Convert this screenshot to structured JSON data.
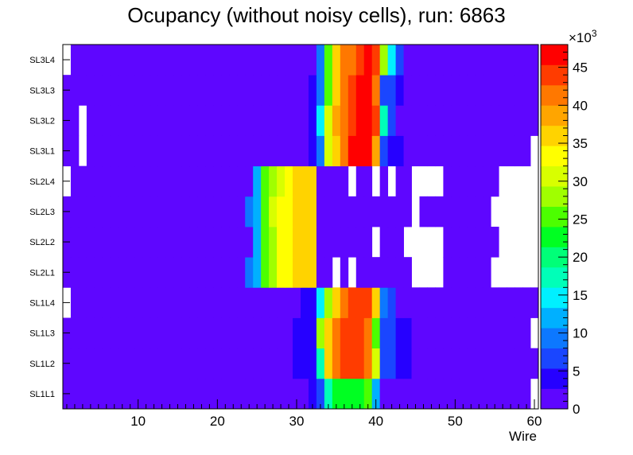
{
  "chart_data": {
    "type": "heatmap",
    "title": "Ocupancy (without noisy cells), run: 6863",
    "xlabel": "Wire",
    "ylabel": "",
    "xlim": [
      0.5,
      60.5
    ],
    "x_ticks": [
      "10",
      "20",
      "30",
      "40",
      "50",
      "60"
    ],
    "x_tick_values": [
      10,
      20,
      30,
      40,
      50,
      60
    ],
    "y_categories": [
      "SL1L1",
      "SL1L2",
      "SL1L3",
      "SL1L4",
      "SL2L1",
      "SL2L2",
      "SL2L3",
      "SL2L4",
      "SL3L1",
      "SL3L2",
      "SL3L3",
      "SL3L4"
    ],
    "colorbar": {
      "exponent_label": "×10",
      "exponent_power": "3",
      "zlim": [
        0,
        48000
      ],
      "ticks": [
        "0",
        "5",
        "10",
        "15",
        "20",
        "25",
        "30",
        "35",
        "40",
        "45"
      ],
      "tick_values": [
        0,
        5000,
        10000,
        15000,
        20000,
        25000,
        30000,
        35000,
        40000,
        45000
      ],
      "palette": [
        "#5E06FF",
        "#2600FF",
        "#1A46FF",
        "#0D78FF",
        "#00B0FF",
        "#00F0FF",
        "#00FFB8",
        "#00FF78",
        "#00FF22",
        "#4CFF00",
        "#A0FF00",
        "#D8FF00",
        "#FFFF00",
        "#FFD300",
        "#FFA500",
        "#FF7800",
        "#FF3C00",
        "#FF0000"
      ]
    },
    "rows": {
      "SL3L4": {
        "empty": [
          1
        ],
        "profile": [
          [
            33,
            9000
          ],
          [
            34,
            24000
          ],
          [
            35,
            35000
          ],
          [
            36,
            40000
          ],
          [
            37,
            42000
          ],
          [
            38,
            45000
          ],
          [
            39,
            48000
          ],
          [
            40,
            43000
          ],
          [
            41,
            28000
          ],
          [
            42,
            14000
          ],
          [
            43,
            7000
          ]
        ]
      },
      "SL3L3": {
        "empty": [],
        "profile": [
          [
            32,
            3000
          ],
          [
            33,
            10000
          ],
          [
            34,
            26000
          ],
          [
            35,
            37000
          ],
          [
            36,
            42000
          ],
          [
            37,
            45000
          ],
          [
            38,
            47000
          ],
          [
            39,
            46000
          ],
          [
            40,
            41000
          ],
          [
            41,
            7000
          ],
          [
            42,
            6000
          ],
          [
            43,
            5000
          ]
        ]
      },
      "SL3L2": {
        "empty": [
          3
        ],
        "profile": [
          [
            32,
            4000
          ],
          [
            33,
            14000
          ],
          [
            34,
            30000
          ],
          [
            35,
            38000
          ],
          [
            36,
            42000
          ],
          [
            37,
            45000
          ],
          [
            38,
            46000
          ],
          [
            39,
            47000
          ],
          [
            40,
            44000
          ],
          [
            41,
            16000
          ],
          [
            42,
            6000
          ]
        ]
      },
      "SL3L1": {
        "empty": [
          3,
          60
        ],
        "profile": [
          [
            32,
            3000
          ],
          [
            33,
            10000
          ],
          [
            34,
            30000
          ],
          [
            35,
            36000
          ],
          [
            36,
            42000
          ],
          [
            37,
            46000
          ],
          [
            38,
            47000
          ],
          [
            39,
            46000
          ],
          [
            40,
            38000
          ],
          [
            41,
            6000
          ],
          [
            42,
            5000
          ],
          [
            43,
            4000
          ]
        ]
      },
      "SL2L4": {
        "empty": [
          1,
          37,
          40,
          42,
          45,
          46,
          47,
          48,
          56,
          57,
          58,
          59,
          60
        ],
        "profile": [
          [
            25,
            11000
          ],
          [
            26,
            24000
          ],
          [
            27,
            28000
          ],
          [
            28,
            31000
          ],
          [
            29,
            34000
          ],
          [
            30,
            35000
          ],
          [
            31,
            35000
          ],
          [
            32,
            35000
          ]
        ]
      },
      "SL2L3": {
        "empty": [
          45,
          55,
          56,
          57,
          58,
          59,
          60
        ],
        "profile": [
          [
            24,
            8000
          ],
          [
            25,
            12000
          ],
          [
            26,
            26000
          ],
          [
            27,
            30000
          ],
          [
            28,
            32000
          ],
          [
            29,
            34000
          ],
          [
            30,
            35000
          ],
          [
            31,
            35000
          ],
          [
            32,
            35000
          ]
        ]
      },
      "SL2L2": {
        "empty": [
          40,
          44,
          45,
          46,
          47,
          48,
          56,
          57,
          58,
          59,
          60
        ],
        "profile": [
          [
            25,
            11000
          ],
          [
            26,
            24000
          ],
          [
            27,
            29000
          ],
          [
            28,
            32000
          ],
          [
            29,
            34000
          ],
          [
            30,
            35000
          ],
          [
            31,
            35000
          ],
          [
            32,
            35000
          ]
        ]
      },
      "SL2L1": {
        "empty": [
          35,
          37,
          45,
          46,
          47,
          48,
          55,
          56,
          57,
          58,
          59,
          60
        ],
        "profile": [
          [
            24,
            8000
          ],
          [
            25,
            11000
          ],
          [
            26,
            25000
          ],
          [
            27,
            29000
          ],
          [
            28,
            32000
          ],
          [
            29,
            34000
          ],
          [
            30,
            35000
          ],
          [
            31,
            35000
          ],
          [
            32,
            35000
          ]
        ]
      },
      "SL1L4": {
        "empty": [
          1
        ],
        "profile": [
          [
            31,
            3000
          ],
          [
            32,
            4000
          ],
          [
            33,
            14000
          ],
          [
            34,
            28000
          ],
          [
            35,
            37000
          ],
          [
            36,
            42000
          ],
          [
            37,
            43000
          ],
          [
            38,
            45000
          ],
          [
            39,
            43000
          ],
          [
            40,
            36000
          ],
          [
            41,
            9000
          ],
          [
            42,
            6000
          ]
        ]
      },
      "SL1L3": {
        "empty": [
          60
        ],
        "profile": [
          [
            30,
            3000
          ],
          [
            31,
            4000
          ],
          [
            32,
            5000
          ],
          [
            33,
            28000
          ],
          [
            34,
            37000
          ],
          [
            35,
            42000
          ],
          [
            36,
            44000
          ],
          [
            37,
            45000
          ],
          [
            38,
            43000
          ],
          [
            39,
            40000
          ],
          [
            40,
            26000
          ],
          [
            41,
            7000
          ],
          [
            42,
            6000
          ],
          [
            43,
            5000
          ],
          [
            44,
            4000
          ]
        ]
      },
      "SL1L2": {
        "empty": [],
        "profile": [
          [
            30,
            3000
          ],
          [
            31,
            4000
          ],
          [
            32,
            5000
          ],
          [
            33,
            18000
          ],
          [
            34,
            35000
          ],
          [
            35,
            40000
          ],
          [
            36,
            43000
          ],
          [
            37,
            45000
          ],
          [
            38,
            44000
          ],
          [
            39,
            40000
          ],
          [
            40,
            31000
          ],
          [
            41,
            7000
          ],
          [
            42,
            6000
          ],
          [
            43,
            5000
          ],
          [
            44,
            4000
          ]
        ]
      },
      "SL1L1": {
        "empty": [
          60
        ],
        "profile": [
          [
            32,
            4000
          ],
          [
            33,
            6000
          ],
          [
            34,
            18000
          ],
          [
            35,
            22000
          ],
          [
            36,
            22000
          ],
          [
            37,
            22000
          ],
          [
            38,
            23000
          ],
          [
            39,
            26000
          ],
          [
            40,
            12000
          ]
        ]
      }
    },
    "background_value": 1500
  }
}
